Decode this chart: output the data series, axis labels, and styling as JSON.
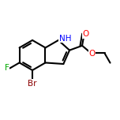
{
  "bg_color": "#ffffff",
  "line_color": "#000000",
  "bond_width": 1.5,
  "atom_colors": {
    "N": "#0000ff",
    "O": "#ff0000",
    "F": "#00aa00",
    "Br": "#8b0000",
    "C": "#000000",
    "H": "#000000"
  },
  "font_size_atom": 7.5,
  "font_size_label": 7.5
}
